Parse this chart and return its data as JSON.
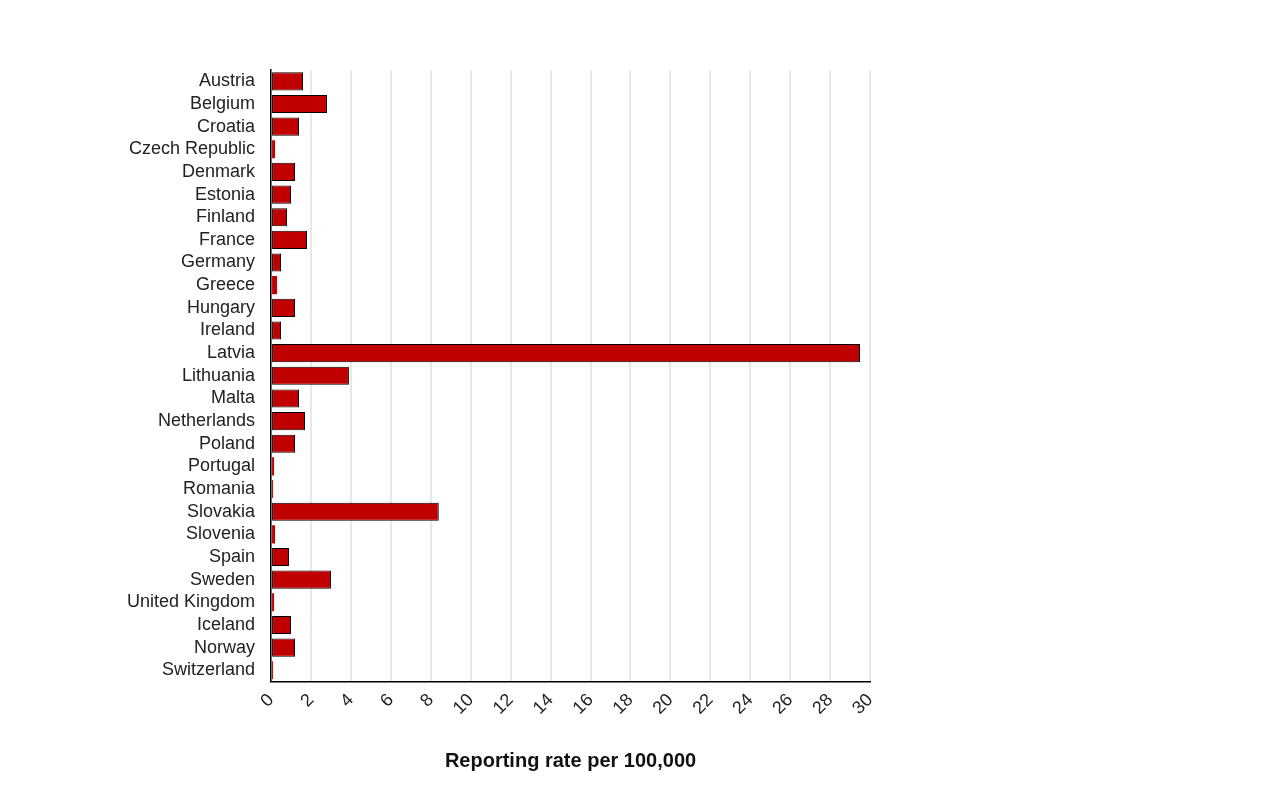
{
  "chart_data": {
    "type": "bar",
    "orientation": "horizontal",
    "xlabel": "Reporting rate per 100,000",
    "categories": [
      "Austria",
      "Belgium",
      "Croatia",
      "Czech Republic",
      "Denmark",
      "Estonia",
      "Finland",
      "France",
      "Germany",
      "Greece",
      "Hungary",
      "Ireland",
      "Latvia",
      "Lithuania",
      "Malta",
      "Netherlands",
      "Poland",
      "Portugal",
      "Romania",
      "Slovakia",
      "Slovenia",
      "Spain",
      "Sweden",
      "United Kingdom",
      "Iceland",
      "Norway",
      "Switzerland"
    ],
    "values": [
      1.6,
      2.8,
      1.4,
      0.2,
      1.2,
      1.0,
      0.8,
      1.8,
      0.5,
      0.3,
      1.2,
      0.5,
      29.5,
      3.9,
      1.4,
      1.7,
      1.2,
      0.15,
      0.1,
      8.4,
      0.2,
      0.9,
      3.0,
      0.15,
      1.0,
      1.2,
      0.1
    ],
    "color": "#c00000",
    "xlim": [
      0,
      30
    ],
    "xticks": [
      0,
      2,
      4,
      6,
      8,
      10,
      12,
      14,
      16,
      18,
      20,
      22,
      24,
      26,
      28,
      30
    ],
    "grid": "x"
  }
}
